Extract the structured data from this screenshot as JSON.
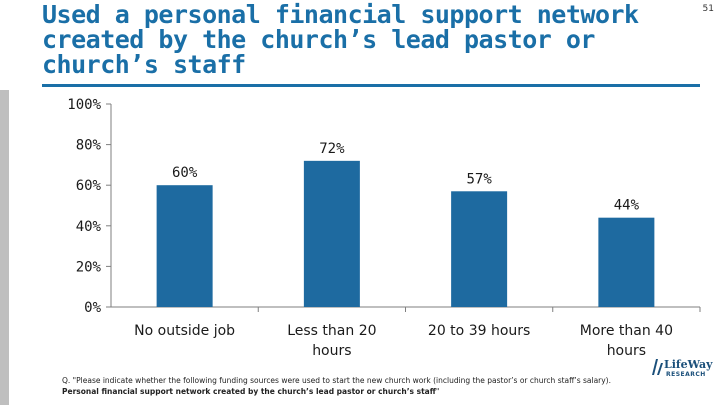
{
  "page_number": "51",
  "title": "Used a personal financial support network created by the church’s lead pastor or church’s staff",
  "colors": {
    "title": "#1a6fa7",
    "bar": "#1e6aa0",
    "rule": "#1a6fa7"
  },
  "chart_data": {
    "type": "bar",
    "title": "",
    "categories": [
      "No outside job",
      "Less than 20 hours",
      "20 to 39 hours",
      "More than 40 hours"
    ],
    "values": [
      60,
      72,
      57,
      44
    ],
    "data_labels": [
      "60%",
      "72%",
      "57%",
      "44%"
    ],
    "ylim": [
      0,
      100
    ],
    "y_ticks": [
      0,
      20,
      40,
      60,
      80,
      100
    ],
    "y_tick_labels": [
      "0%",
      "20%",
      "40%",
      "60%",
      "80%",
      "100%"
    ],
    "xlabel": "",
    "ylabel": "",
    "grid": false,
    "legend": "none"
  },
  "footnote": {
    "question": "Q. \"Please indicate whether the following funding sources were used to start the new church work (including the pastor’s or church staff’s salary).",
    "emphasis": "Personal financial support network created by the church’s lead pastor or church’s staff",
    "end": "\""
  },
  "logo": {
    "name": "LifeWay",
    "sub": "RESEARCH",
    "icon": "lifeway-logo-icon"
  }
}
